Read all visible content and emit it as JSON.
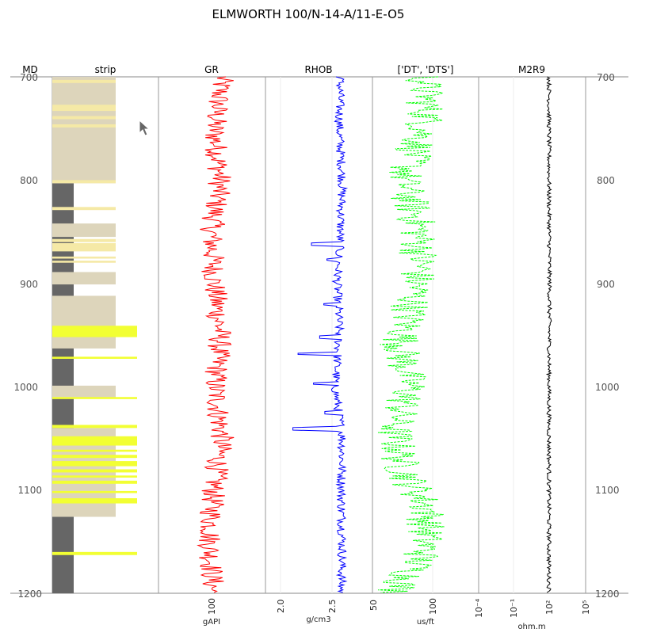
{
  "title": "ELMWORTH 100/N-14-A/11-E-O5",
  "tracks": [
    {
      "id": "md",
      "header": "MD"
    },
    {
      "id": "strip",
      "header": "strip"
    },
    {
      "id": "gr",
      "header": "GR",
      "unit": "gAPI",
      "ticks": [
        "100"
      ]
    },
    {
      "id": "rhob",
      "header": "RHOB",
      "unit": "g/cm3",
      "ticks": [
        "2.0",
        "2.5",
        "50"
      ]
    },
    {
      "id": "dt",
      "header": "['DT', 'DTS']",
      "unit": "us/ft",
      "ticks": [
        "100",
        "10⁻⁴"
      ]
    },
    {
      "id": "res",
      "header": "M2R9",
      "unit": "ohm.m",
      "ticks": [
        "10⁻¹",
        "10²",
        "10⁵"
      ]
    }
  ],
  "depth_ticks": [
    "700",
    "800",
    "900",
    "1000",
    "1100",
    "1200"
  ],
  "colors": {
    "gr": "#ff0000",
    "rhob": "#0000ff",
    "dt": "#00ff00",
    "res": "#000000",
    "shale": "#666666",
    "sand": "#ddd5bb",
    "lightsand": "#f5e9a6",
    "yellow": "#f2ff33"
  },
  "chart_data": {
    "type": "line",
    "depth_axis": {
      "label": "MD",
      "range": [
        700,
        1200
      ],
      "inverted": true
    },
    "strip_intervals": [
      {
        "top": 700,
        "base": 803,
        "lith": "sand"
      },
      {
        "top": 703,
        "base": 706,
        "lith": "light"
      },
      {
        "top": 727,
        "base": 733,
        "lith": "light"
      },
      {
        "top": 738,
        "base": 741,
        "lith": "light"
      },
      {
        "top": 746,
        "base": 749,
        "lith": "light"
      },
      {
        "top": 800,
        "base": 803,
        "lith": "light"
      },
      {
        "top": 803,
        "base": 1200,
        "lith": "shale"
      },
      {
        "top": 826,
        "base": 829,
        "lith": "light"
      },
      {
        "top": 842,
        "base": 855,
        "lith": "sand"
      },
      {
        "top": 857,
        "base": 860,
        "lith": "light"
      },
      {
        "top": 861,
        "base": 869,
        "lith": "light"
      },
      {
        "top": 874,
        "base": 876,
        "lith": "light"
      },
      {
        "top": 878,
        "base": 880,
        "lith": "light"
      },
      {
        "top": 889,
        "base": 901,
        "lith": "sand"
      },
      {
        "top": 912,
        "base": 963,
        "lith": "sand"
      },
      {
        "top": 941,
        "base": 952,
        "lith": "yellow"
      },
      {
        "top": 971,
        "base": 973,
        "lith": "yellow"
      },
      {
        "top": 999,
        "base": 1011,
        "lith": "sand"
      },
      {
        "top": 1010,
        "base": 1012,
        "lith": "yellow"
      },
      {
        "top": 1037,
        "base": 1040,
        "lith": "yellow"
      },
      {
        "top": 1040,
        "base": 1126,
        "lith": "sand"
      },
      {
        "top": 1048,
        "base": 1057,
        "lith": "yellow"
      },
      {
        "top": 1061,
        "base": 1063,
        "lith": "yellow"
      },
      {
        "top": 1066,
        "base": 1069,
        "lith": "yellow"
      },
      {
        "top": 1072,
        "base": 1077,
        "lith": "yellow"
      },
      {
        "top": 1080,
        "base": 1083,
        "lith": "yellow"
      },
      {
        "top": 1086,
        "base": 1088,
        "lith": "yellow"
      },
      {
        "top": 1091,
        "base": 1094,
        "lith": "yellow"
      },
      {
        "top": 1101,
        "base": 1103,
        "lith": "yellow"
      },
      {
        "top": 1108,
        "base": 1113,
        "lith": "yellow"
      },
      {
        "top": 1160,
        "base": 1163,
        "lith": "yellow"
      }
    ],
    "gr": {
      "name": "GR",
      "unit": "gAPI",
      "depth": [
        700,
        750,
        800,
        850,
        900,
        950,
        1000,
        1050,
        1100,
        1150,
        1200
      ],
      "values": [
        112,
        103,
        110,
        100,
        103,
        110,
        104,
        112,
        102,
        98,
        102
      ]
    },
    "rhob": {
      "name": "RHOB",
      "unit": "g/cm3",
      "depth": [
        700,
        750,
        800,
        850,
        900,
        950,
        1000,
        1050,
        1100,
        1150,
        1200
      ],
      "values": [
        2.58,
        2.57,
        2.6,
        2.58,
        2.55,
        2.57,
        2.53,
        2.6,
        2.59,
        2.6,
        2.59
      ]
    },
    "rhob_spikes": [
      {
        "depth": 862,
        "value": 2.3
      },
      {
        "depth": 877,
        "value": 2.45
      },
      {
        "depth": 920,
        "value": 2.42
      },
      {
        "depth": 952,
        "value": 2.38
      },
      {
        "depth": 968,
        "value": 2.17
      },
      {
        "depth": 997,
        "value": 2.32
      },
      {
        "depth": 1025,
        "value": 2.43
      },
      {
        "depth": 1041,
        "value": 2.12
      }
    ],
    "dt": {
      "name": "DT",
      "unit": "us/ft",
      "depth": [
        700,
        740,
        800,
        840,
        880,
        920,
        960,
        1000,
        1040,
        1080,
        1120,
        1160,
        1200
      ],
      "values": [
        92,
        95,
        72,
        85,
        88,
        80,
        70,
        78,
        65,
        72,
        96,
        92,
        65
      ]
    },
    "res": {
      "name": "M2R9",
      "unit": "ohm.m",
      "depth": [
        700,
        800,
        900,
        1000,
        1100,
        1200
      ],
      "values": [
        100,
        100,
        110,
        100,
        100,
        100
      ]
    }
  }
}
